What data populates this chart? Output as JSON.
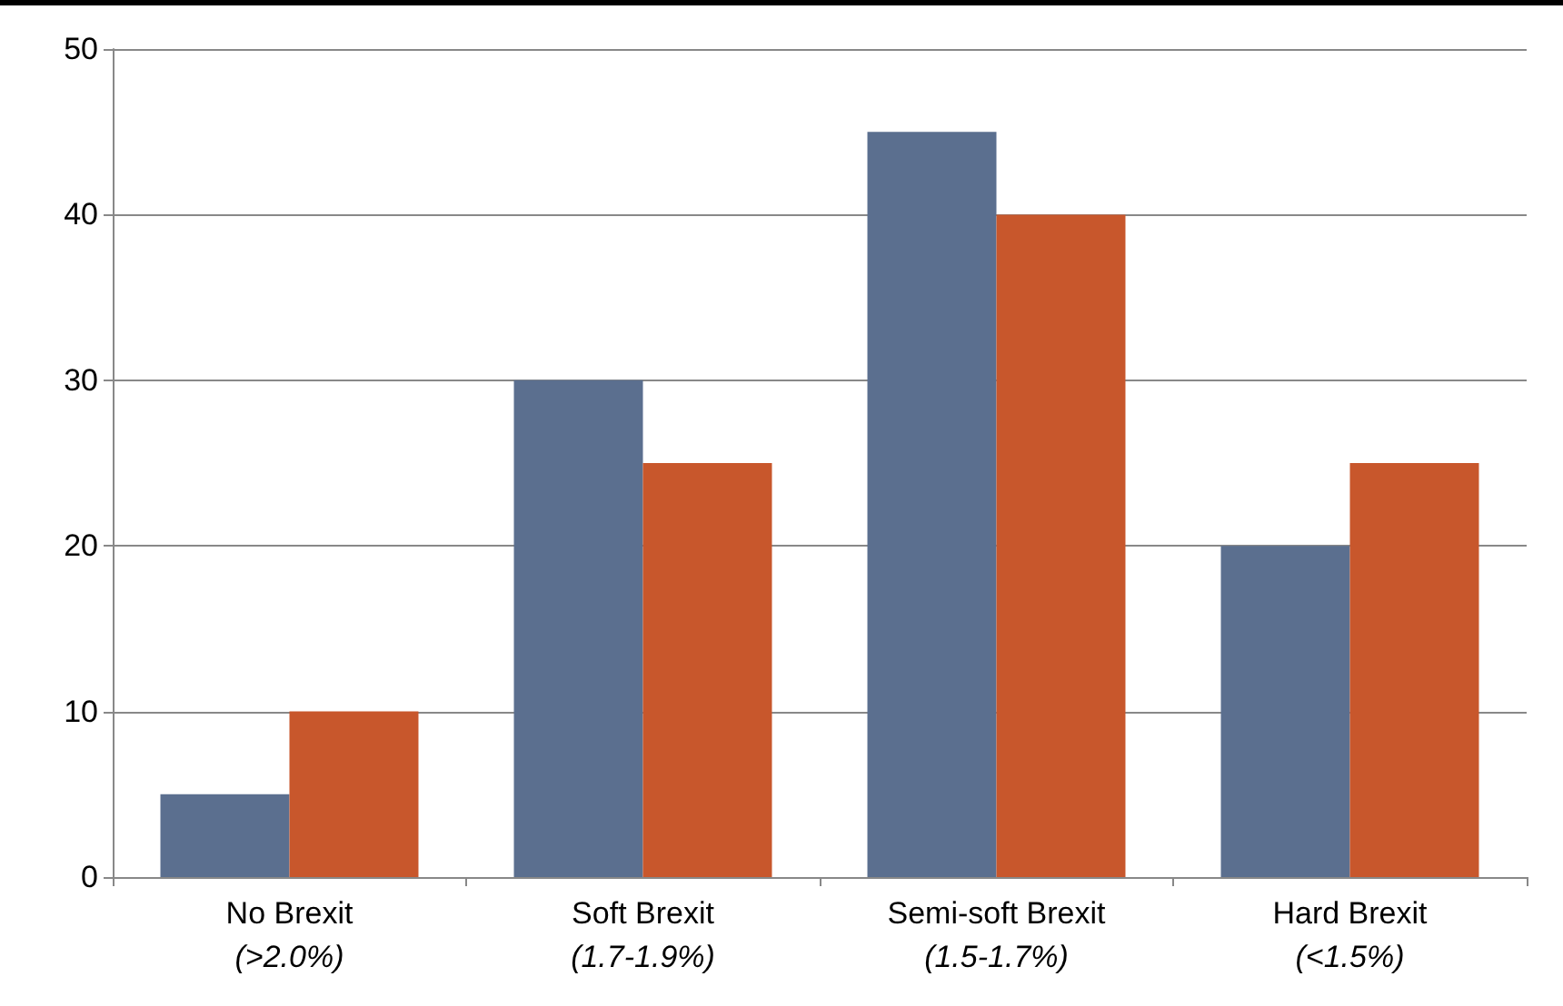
{
  "chart_data": {
    "type": "bar",
    "categories": [
      "No Brexit\n(>2.0%)",
      "Soft Brexit\n(1.7-1.9%)",
      "Semi-soft Brexit\n(1.5-1.7%)",
      "Hard Brexit\n(<1.5%)"
    ],
    "series": [
      {
        "color": "#5b6f8f",
        "values": [
          5,
          30,
          45,
          20
        ]
      },
      {
        "color": "#c8572c",
        "values": [
          10,
          25,
          40,
          25
        ]
      }
    ],
    "ylim": [
      0,
      50
    ],
    "yticks": [
      0,
      10,
      20,
      30,
      40,
      50
    ],
    "grid": "y"
  }
}
